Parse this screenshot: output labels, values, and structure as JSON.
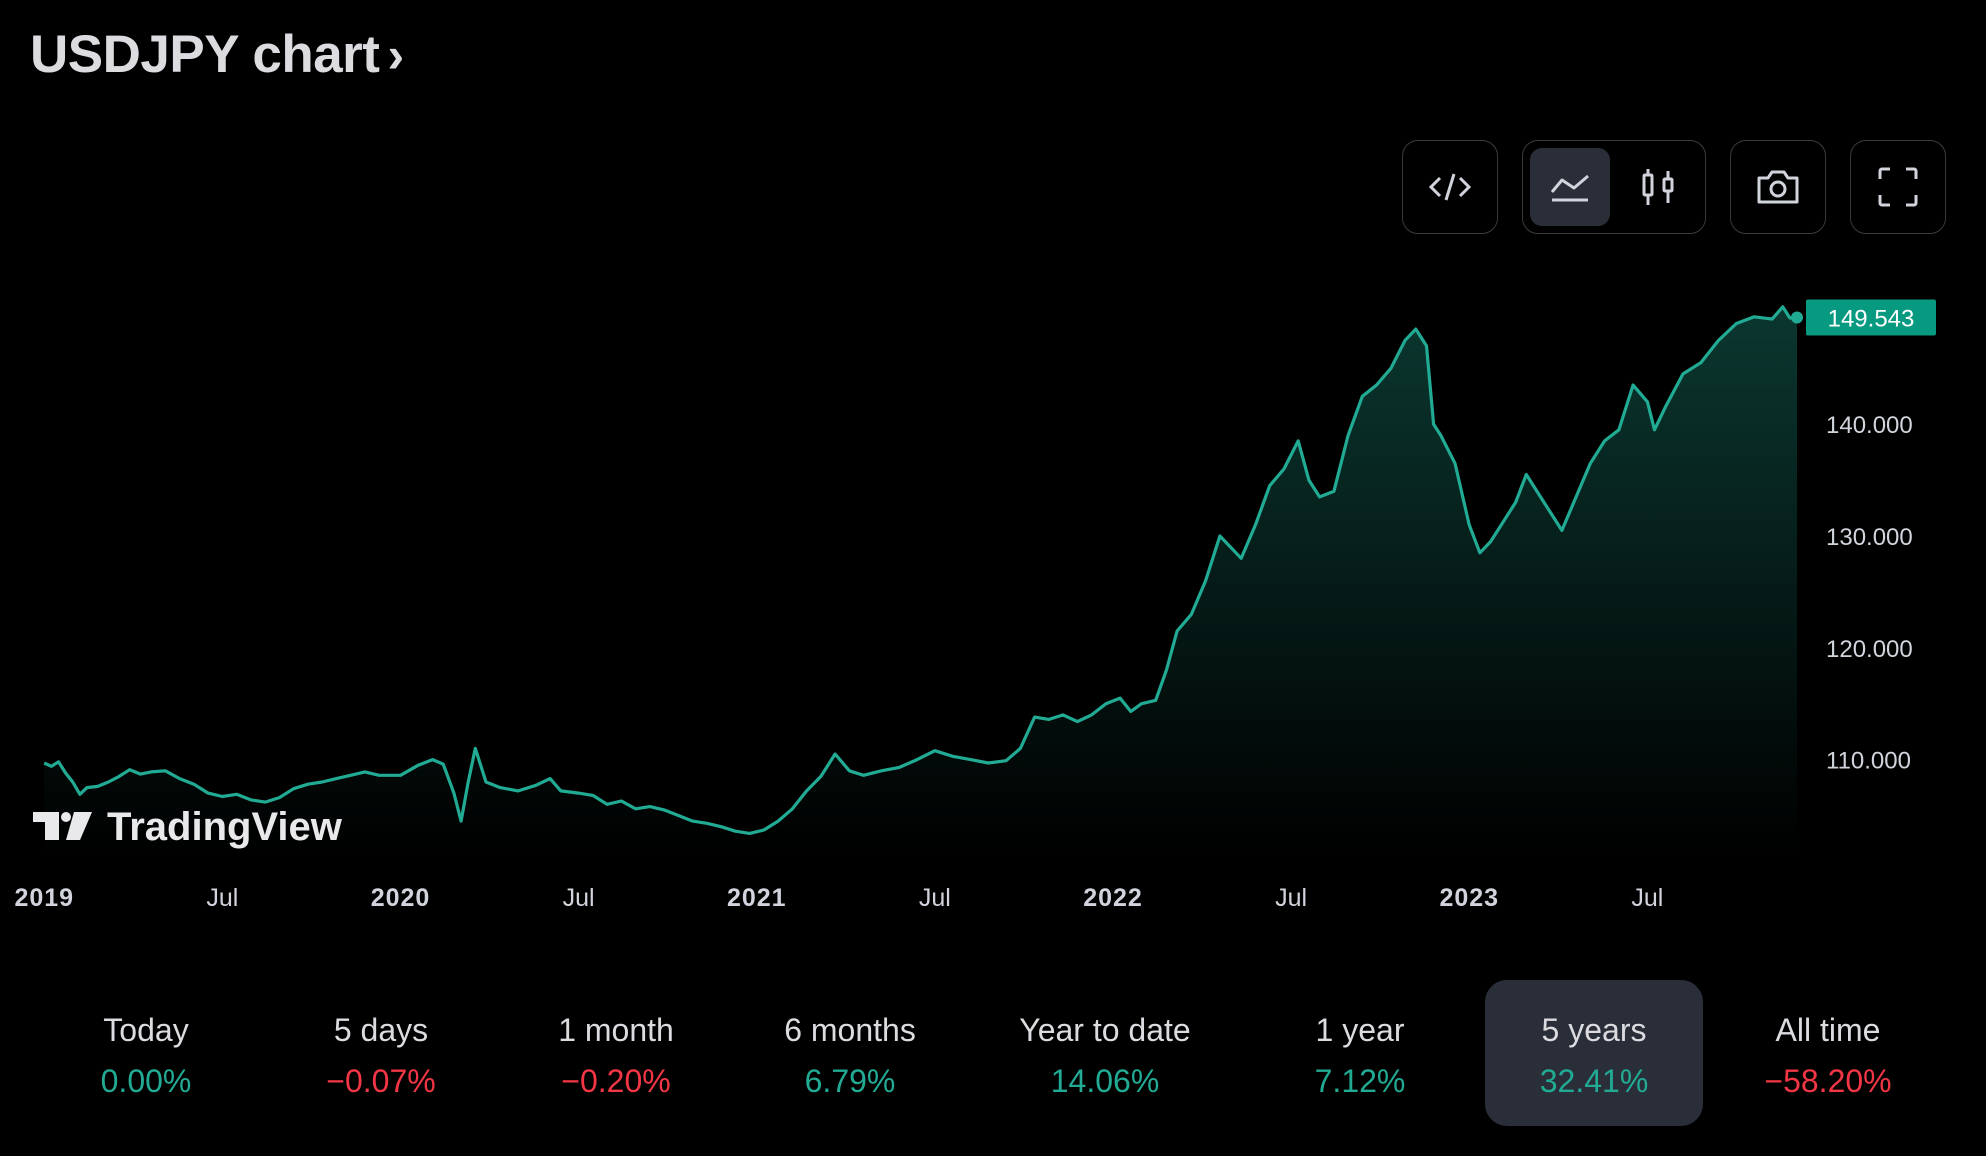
{
  "header": {
    "title": "USDJPY chart",
    "chevron": "›"
  },
  "toolbar": {
    "embed_icon": "code-icon",
    "area_icon": "area-chart-icon",
    "candles_icon": "candlestick-icon",
    "snapshot_icon": "camera-icon",
    "fullscreen_icon": "fullscreen-icon"
  },
  "chart_data": {
    "type": "area",
    "symbol": "USDJPY",
    "series": [
      {
        "points": [
          [
            2019.0,
            109.7
          ],
          [
            2019.02,
            109.4
          ],
          [
            2019.04,
            109.8
          ],
          [
            2019.06,
            108.8
          ],
          [
            2019.08,
            108.0
          ],
          [
            2019.1,
            106.9
          ],
          [
            2019.12,
            107.5
          ],
          [
            2019.15,
            107.6
          ],
          [
            2019.18,
            108.0
          ],
          [
            2019.21,
            108.5
          ],
          [
            2019.24,
            109.1
          ],
          [
            2019.27,
            108.7
          ],
          [
            2019.3,
            108.9
          ],
          [
            2019.34,
            109.0
          ],
          [
            2019.38,
            108.3
          ],
          [
            2019.42,
            107.8
          ],
          [
            2019.46,
            107.0
          ],
          [
            2019.5,
            106.7
          ],
          [
            2019.54,
            106.9
          ],
          [
            2019.58,
            106.4
          ],
          [
            2019.62,
            106.2
          ],
          [
            2019.66,
            106.6
          ],
          [
            2019.7,
            107.4
          ],
          [
            2019.74,
            107.8
          ],
          [
            2019.78,
            108.0
          ],
          [
            2019.82,
            108.3
          ],
          [
            2019.86,
            108.6
          ],
          [
            2019.9,
            108.9
          ],
          [
            2019.94,
            108.6
          ],
          [
            2020.0,
            108.6
          ],
          [
            2020.05,
            109.5
          ],
          [
            2020.09,
            110.0
          ],
          [
            2020.12,
            109.6
          ],
          [
            2020.15,
            107.0
          ],
          [
            2020.17,
            104.5
          ],
          [
            2020.19,
            108.0
          ],
          [
            2020.21,
            111.0
          ],
          [
            2020.24,
            108.0
          ],
          [
            2020.28,
            107.5
          ],
          [
            2020.33,
            107.2
          ],
          [
            2020.38,
            107.7
          ],
          [
            2020.42,
            108.3
          ],
          [
            2020.45,
            107.2
          ],
          [
            2020.5,
            107.0
          ],
          [
            2020.54,
            106.8
          ],
          [
            2020.58,
            106.0
          ],
          [
            2020.62,
            106.3
          ],
          [
            2020.66,
            105.6
          ],
          [
            2020.7,
            105.8
          ],
          [
            2020.74,
            105.5
          ],
          [
            2020.78,
            105.0
          ],
          [
            2020.82,
            104.5
          ],
          [
            2020.86,
            104.3
          ],
          [
            2020.9,
            104.0
          ],
          [
            2020.94,
            103.6
          ],
          [
            2020.98,
            103.4
          ],
          [
            2021.02,
            103.7
          ],
          [
            2021.06,
            104.5
          ],
          [
            2021.1,
            105.6
          ],
          [
            2021.14,
            107.2
          ],
          [
            2021.18,
            108.5
          ],
          [
            2021.22,
            110.5
          ],
          [
            2021.26,
            109.0
          ],
          [
            2021.3,
            108.6
          ],
          [
            2021.35,
            109.0
          ],
          [
            2021.4,
            109.3
          ],
          [
            2021.45,
            110.0
          ],
          [
            2021.5,
            110.8
          ],
          [
            2021.55,
            110.3
          ],
          [
            2021.6,
            110.0
          ],
          [
            2021.65,
            109.7
          ],
          [
            2021.7,
            109.9
          ],
          [
            2021.74,
            111.0
          ],
          [
            2021.78,
            113.8
          ],
          [
            2021.82,
            113.6
          ],
          [
            2021.86,
            114.0
          ],
          [
            2021.9,
            113.4
          ],
          [
            2021.94,
            114.0
          ],
          [
            2021.98,
            115.0
          ],
          [
            2022.02,
            115.5
          ],
          [
            2022.05,
            114.3
          ],
          [
            2022.08,
            115.0
          ],
          [
            2022.12,
            115.3
          ],
          [
            2022.15,
            118.0
          ],
          [
            2022.18,
            121.5
          ],
          [
            2022.22,
            123.0
          ],
          [
            2022.26,
            126.0
          ],
          [
            2022.3,
            130.0
          ],
          [
            2022.33,
            129.0
          ],
          [
            2022.36,
            128.0
          ],
          [
            2022.4,
            131.0
          ],
          [
            2022.44,
            134.5
          ],
          [
            2022.48,
            136.0
          ],
          [
            2022.52,
            138.5
          ],
          [
            2022.55,
            135.0
          ],
          [
            2022.58,
            133.5
          ],
          [
            2022.62,
            134.0
          ],
          [
            2022.66,
            139.0
          ],
          [
            2022.7,
            142.5
          ],
          [
            2022.74,
            143.5
          ],
          [
            2022.78,
            145.0
          ],
          [
            2022.82,
            147.5
          ],
          [
            2022.85,
            148.5
          ],
          [
            2022.88,
            147.0
          ],
          [
            2022.9,
            140.0
          ],
          [
            2022.92,
            139.0
          ],
          [
            2022.96,
            136.5
          ],
          [
            2023.0,
            131.0
          ],
          [
            2023.03,
            128.5
          ],
          [
            2023.06,
            129.5
          ],
          [
            2023.1,
            131.5
          ],
          [
            2023.13,
            133.0
          ],
          [
            2023.16,
            135.5
          ],
          [
            2023.2,
            133.5
          ],
          [
            2023.23,
            132.0
          ],
          [
            2023.26,
            130.5
          ],
          [
            2023.3,
            133.5
          ],
          [
            2023.34,
            136.5
          ],
          [
            2023.38,
            138.5
          ],
          [
            2023.42,
            139.5
          ],
          [
            2023.46,
            143.5
          ],
          [
            2023.5,
            142.0
          ],
          [
            2023.52,
            139.5
          ],
          [
            2023.55,
            141.5
          ],
          [
            2023.6,
            144.5
          ],
          [
            2023.65,
            145.5
          ],
          [
            2023.7,
            147.5
          ],
          [
            2023.75,
            149.0
          ],
          [
            2023.8,
            149.6
          ],
          [
            2023.85,
            149.4
          ],
          [
            2023.88,
            150.5
          ],
          [
            2023.9,
            149.5
          ],
          [
            2023.92,
            149.543
          ]
        ]
      }
    ],
    "last_value_label": "149.543",
    "y_ticks": [
      "140.000",
      "130.000",
      "120.000",
      "110.000"
    ],
    "y_tick_values": [
      140,
      130,
      120,
      110
    ],
    "x_ticks": [
      {
        "label": "2019",
        "t": 2019.0,
        "bold": true
      },
      {
        "label": "Jul",
        "t": 2019.5,
        "bold": false
      },
      {
        "label": "2020",
        "t": 2020.0,
        "bold": true
      },
      {
        "label": "Jul",
        "t": 2020.5,
        "bold": false
      },
      {
        "label": "2021",
        "t": 2021.0,
        "bold": true
      },
      {
        "label": "Jul",
        "t": 2021.5,
        "bold": false
      },
      {
        "label": "2022",
        "t": 2022.0,
        "bold": true
      },
      {
        "label": "Jul",
        "t": 2022.5,
        "bold": false
      },
      {
        "label": "2023",
        "t": 2023.0,
        "bold": true
      },
      {
        "label": "Jul",
        "t": 2023.5,
        "bold": false
      }
    ],
    "ylim": [
      101.2,
      152.0
    ],
    "xlim": [
      2018.96,
      2023.92
    ],
    "grid": false,
    "line_color": "#22ab94",
    "label_color": "#089981",
    "watermark": "TradingView"
  },
  "periods": [
    {
      "label": "Today",
      "value": "0.00%",
      "sign": "pos"
    },
    {
      "label": "5 days",
      "value": "−0.07%",
      "sign": "neg"
    },
    {
      "label": "1 month",
      "value": "−0.20%",
      "sign": "neg"
    },
    {
      "label": "6 months",
      "value": "6.79%",
      "sign": "pos"
    },
    {
      "label": "Year to date",
      "value": "14.06%",
      "sign": "pos"
    },
    {
      "label": "1 year",
      "value": "7.12%",
      "sign": "pos"
    },
    {
      "label": "5 years",
      "value": "32.41%",
      "sign": "pos",
      "active": true
    },
    {
      "label": "All time",
      "value": "−58.20%",
      "sign": "neg"
    }
  ]
}
